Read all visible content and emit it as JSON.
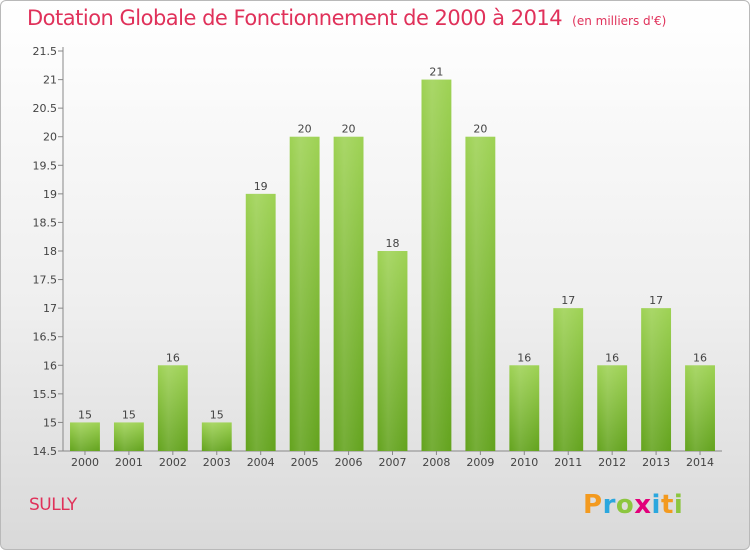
{
  "chart_data": {
    "type": "bar",
    "title": "Dotation Globale de Fonctionnement de 2000 à 2014",
    "subtitle": "(en milliers d'€)",
    "categories": [
      "2000",
      "2001",
      "2002",
      "2003",
      "2004",
      "2005",
      "2006",
      "2007",
      "2008",
      "2009",
      "2010",
      "2011",
      "2012",
      "2013",
      "2014"
    ],
    "values": [
      15,
      15,
      16,
      15,
      19,
      20,
      20,
      18,
      21,
      20,
      16,
      17,
      16,
      17,
      16
    ],
    "ylim": [
      14.5,
      21.5
    ],
    "yticks": [
      "14.5",
      "15",
      "15.5",
      "16",
      "16.5",
      "17",
      "17.5",
      "18",
      "18.5",
      "19",
      "19.5",
      "20",
      "20.5",
      "21",
      "21.5"
    ],
    "xlabel": "",
    "ylabel": "",
    "grid": false,
    "bar_color": "#7cc142"
  },
  "commune": "SULLY",
  "logo": {
    "text": "Proxiti",
    "letters": [
      "P",
      "r",
      "o",
      "x",
      "i",
      "t",
      "i"
    ],
    "colors": [
      "#f39a1f",
      "#2aa7de",
      "#8cc63f",
      "#e2007a",
      "#2aa7de",
      "#f39a1f",
      "#8cc63f"
    ]
  }
}
